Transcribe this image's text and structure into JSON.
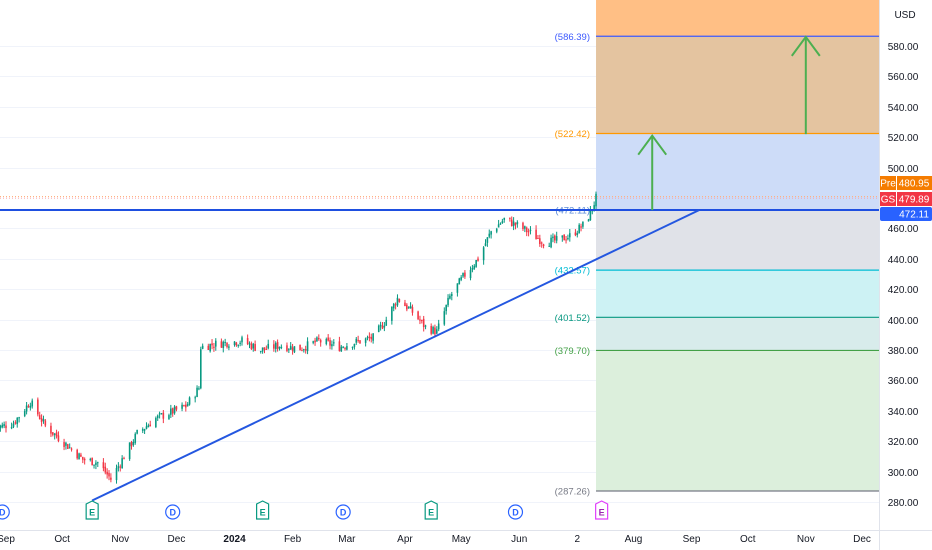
{
  "currency_label": "USD",
  "chart_data": {
    "type": "candlestick",
    "ticker": "GS",
    "y_axis": {
      "min": 270,
      "max": 606,
      "ticks": [
        "280.00",
        "300.00",
        "320.00",
        "340.00",
        "360.00",
        "380.00",
        "400.00",
        "420.00",
        "440.00",
        "460.00",
        "500.00",
        "520.00",
        "540.00",
        "560.00",
        "580.00"
      ]
    },
    "x_axis": {
      "start": "2023-08-25",
      "end": "2024-12-31",
      "ticks": [
        {
          "date": "2023-09-01",
          "label": "Sep",
          "bold": false
        },
        {
          "date": "2023-10-01",
          "label": "Oct",
          "bold": false
        },
        {
          "date": "2023-11-01",
          "label": "Nov",
          "bold": false
        },
        {
          "date": "2023-12-01",
          "label": "Dec",
          "bold": false
        },
        {
          "date": "2024-01-01",
          "label": "2024",
          "bold": true
        },
        {
          "date": "2024-02-01",
          "label": "Feb",
          "bold": false
        },
        {
          "date": "2024-03-01",
          "label": "Mar",
          "bold": false
        },
        {
          "date": "2024-04-01",
          "label": "Apr",
          "bold": false
        },
        {
          "date": "2024-05-01",
          "label": "May",
          "bold": false
        },
        {
          "date": "2024-06-01",
          "label": "Jun",
          "bold": false
        },
        {
          "date": "2024-07-02",
          "label": "2",
          "bold": false
        },
        {
          "date": "2024-08-01",
          "label": "Aug",
          "bold": false
        },
        {
          "date": "2024-09-01",
          "label": "Sep",
          "bold": false
        },
        {
          "date": "2024-10-01",
          "label": "Oct",
          "bold": false
        },
        {
          "date": "2024-11-01",
          "label": "Nov",
          "bold": false
        },
        {
          "date": "2024-12-01",
          "label": "Dec",
          "bold": false
        }
      ]
    },
    "price_path": [
      [
        "2023-08-25",
        328
      ],
      [
        "2023-09-05",
        332
      ],
      [
        "2023-09-14",
        346
      ],
      [
        "2023-09-22",
        330
      ],
      [
        "2023-10-03",
        318
      ],
      [
        "2023-10-12",
        308
      ],
      [
        "2023-10-20",
        306
      ],
      [
        "2023-10-27",
        295
      ],
      [
        "2023-11-03",
        310
      ],
      [
        "2023-11-10",
        325
      ],
      [
        "2023-11-20",
        335
      ],
      [
        "2023-11-30",
        340
      ],
      [
        "2023-12-06",
        343
      ],
      [
        "2023-12-13",
        355
      ],
      [
        "2023-12-14",
        382
      ],
      [
        "2023-12-22",
        384
      ],
      [
        "2024-01-05",
        386
      ],
      [
        "2024-01-15",
        380
      ],
      [
        "2024-01-25",
        383
      ],
      [
        "2024-02-05",
        381
      ],
      [
        "2024-02-15",
        386
      ],
      [
        "2024-02-26",
        382
      ],
      [
        "2024-03-05",
        385
      ],
      [
        "2024-03-15",
        388
      ],
      [
        "2024-03-22",
        400
      ],
      [
        "2024-03-28",
        414
      ],
      [
        "2024-04-05",
        405
      ],
      [
        "2024-04-12",
        395
      ],
      [
        "2024-04-18",
        392
      ],
      [
        "2024-04-25",
        415
      ],
      [
        "2024-05-02",
        428
      ],
      [
        "2024-05-10",
        440
      ],
      [
        "2024-05-17",
        458
      ],
      [
        "2024-05-24",
        466
      ],
      [
        "2024-05-31",
        462
      ],
      [
        "2024-06-07",
        457
      ],
      [
        "2024-06-14",
        451
      ],
      [
        "2024-06-21",
        452
      ],
      [
        "2024-06-28",
        455
      ],
      [
        "2024-07-05",
        462
      ],
      [
        "2024-07-09",
        470
      ],
      [
        "2024-07-12",
        480
      ]
    ],
    "events": [
      {
        "type": "D",
        "date": "2023-08-30"
      },
      {
        "type": "E",
        "date": "2023-10-17"
      },
      {
        "type": "D",
        "date": "2023-11-29"
      },
      {
        "type": "E",
        "date": "2024-01-16"
      },
      {
        "type": "D",
        "date": "2024-02-28"
      },
      {
        "type": "E",
        "date": "2024-04-15"
      },
      {
        "type": "D",
        "date": "2024-05-30"
      },
      {
        "type": "E",
        "date": "2024-07-15"
      }
    ],
    "fib_start_date": "2024-07-12",
    "fib_levels": [
      {
        "value": 586.39,
        "label": "(586.39)",
        "color": "#3d5afe",
        "fill_above": "#ffbf85"
      },
      {
        "value": 522.42,
        "label": "(522.42)",
        "color": "#ff9800",
        "fill_above": "#e4c4a0"
      },
      {
        "value": 472.11,
        "label": "(472.11)",
        "color": "#5b8bd8",
        "fill_above": "#cddcf8"
      },
      {
        "value": 432.57,
        "label": "(432.57)",
        "color": "#00bcd4",
        "fill_above": "#e0e2e8"
      },
      {
        "value": 401.52,
        "label": "(401.52)",
        "color": "#089981",
        "fill_above": "#cdf2f4"
      },
      {
        "value": 379.7,
        "label": "(379.70)",
        "color": "#43a047",
        "fill_above": "#d8eceb"
      },
      {
        "value": 287.26,
        "label": "(287.26)",
        "color": "#787b86",
        "fill_above": "#dcefdc"
      }
    ],
    "support_line": {
      "value": 472.11,
      "color": "#1e4fe0"
    },
    "trendline": {
      "from": {
        "date": "2023-10-17",
        "value": 281
      },
      "to": {
        "date": "2024-09-05",
        "value": 472
      },
      "color": "#2457e0"
    },
    "arrows": [
      {
        "date": "2024-08-11",
        "from": 472,
        "to": 521,
        "color": "#4caf50"
      },
      {
        "date": "2024-11-01",
        "from": 522,
        "to": 586,
        "color": "#4caf50"
      }
    ],
    "price_tags": [
      {
        "label": "Pre",
        "value": "480.95",
        "price": 480.95,
        "bg": "#f57c00"
      },
      {
        "label": "GS",
        "value": "479.89",
        "price": 479.89,
        "bg": "#f23645"
      },
      {
        "label": "",
        "value": "472.11",
        "price": 472.11,
        "bg": "#2962ff"
      }
    ],
    "dotted_price_lines": [
      {
        "price": 480.95,
        "color": "#ffb380"
      },
      {
        "price": 479.89,
        "color": "#f7a1a8"
      }
    ]
  }
}
